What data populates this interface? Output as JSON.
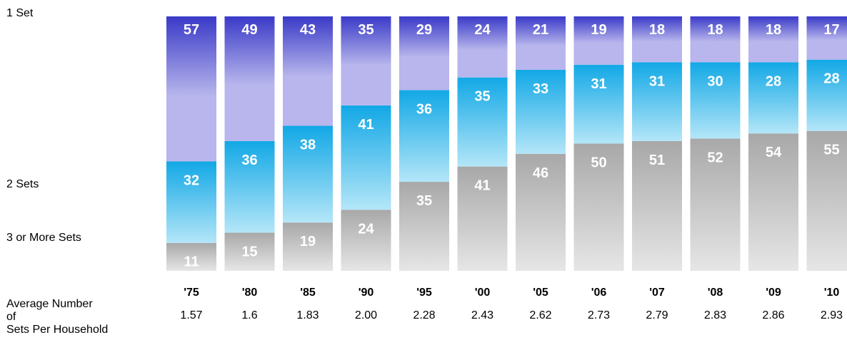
{
  "legend": {
    "one_set": "1 Set",
    "two_sets": "2 Sets",
    "three_plus": "3 or More Sets"
  },
  "avg_label_lines": [
    "Average Number",
    "of",
    "Sets Per Household"
  ],
  "colors": {
    "one_set_top": "#3a3ac8",
    "one_set_bottom": "#b8b6ec",
    "two_sets_top": "#12a8e6",
    "two_sets_bottom": "#b4e6f8",
    "three_top": "#a8a8a8",
    "three_bottom": "#e6e6e6"
  },
  "chart_data": {
    "type": "bar",
    "stacked": true,
    "categories": [
      "'75",
      "'80",
      "'85",
      "'90",
      "'95",
      "'00",
      "'05",
      "'06",
      "'07",
      "'08",
      "'09",
      "'10"
    ],
    "series": [
      {
        "name": "3 or More Sets",
        "values": [
          11,
          15,
          19,
          24,
          35,
          41,
          46,
          50,
          51,
          52,
          54,
          55
        ]
      },
      {
        "name": "2 Sets",
        "values": [
          32,
          36,
          38,
          41,
          36,
          35,
          33,
          31,
          31,
          30,
          28,
          28
        ]
      },
      {
        "name": "1 Set",
        "values": [
          57,
          49,
          43,
          35,
          29,
          24,
          21,
          19,
          18,
          18,
          18,
          17
        ]
      }
    ],
    "average_sets": [
      "1.57",
      "1.6",
      "1.83",
      "2.00",
      "2.28",
      "2.43",
      "2.62",
      "2.73",
      "2.79",
      "2.83",
      "2.86",
      "2.93"
    ],
    "ylim": [
      0,
      100
    ]
  }
}
